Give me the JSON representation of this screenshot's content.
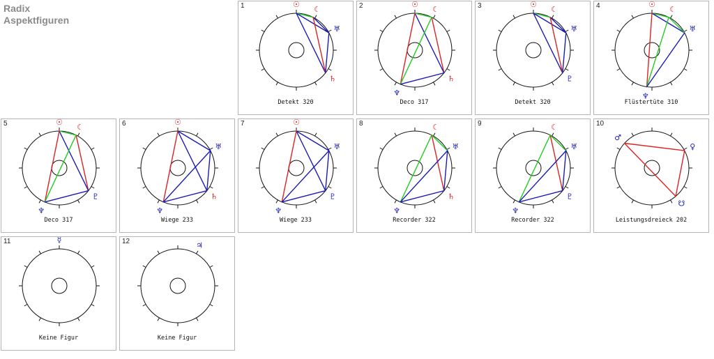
{
  "title": {
    "line1": "Radix",
    "line2": "Aspektfiguren"
  },
  "colors": {
    "red": "#dd2222",
    "blue": "#1a1ab5",
    "green": "#22cc22"
  },
  "symbol_colors": {
    "sun": "#dd2222",
    "moon": "#dd2222",
    "saturn": "#dd2222",
    "mars": "#1a1ab5",
    "venus": "#1a1ab5",
    "mercury": "#1a1ab5",
    "jupiter": "#1a1ab5",
    "uranus": "#1a1ab5",
    "neptune": "#1a1ab5",
    "pluto": "#1a1ab5",
    "node": "#1a1ab5"
  },
  "figures": [
    {
      "num": "1",
      "label": "Detekt 320",
      "planets": [
        {
          "id": "sun",
          "lon": 90
        },
        {
          "id": "moon",
          "lon": 63
        },
        {
          "id": "uranus",
          "lon": 28
        },
        {
          "id": "saturn",
          "lon": -38
        }
      ],
      "aspects": [
        {
          "a": "sun",
          "b": "moon",
          "c": "green"
        },
        {
          "a": "sun",
          "b": "uranus",
          "c": "blue"
        },
        {
          "a": "sun",
          "b": "saturn",
          "c": "blue"
        },
        {
          "a": "moon",
          "b": "uranus",
          "c": "blue"
        },
        {
          "a": "moon",
          "b": "saturn",
          "c": "red"
        },
        {
          "a": "uranus",
          "b": "saturn",
          "c": "blue"
        }
      ]
    },
    {
      "num": "2",
      "label": "Deco 317",
      "planets": [
        {
          "id": "sun",
          "lon": 90
        },
        {
          "id": "moon",
          "lon": 63
        },
        {
          "id": "saturn",
          "lon": -38
        },
        {
          "id": "neptune",
          "lon": -113
        }
      ],
      "aspects": [
        {
          "a": "sun",
          "b": "moon",
          "c": "green"
        },
        {
          "a": "moon",
          "b": "saturn",
          "c": "red"
        },
        {
          "a": "sun",
          "b": "saturn",
          "c": "blue"
        },
        {
          "a": "sun",
          "b": "neptune",
          "c": "red"
        },
        {
          "a": "moon",
          "b": "neptune",
          "c": "green"
        },
        {
          "a": "saturn",
          "b": "neptune",
          "c": "blue"
        }
      ]
    },
    {
      "num": "3",
      "label": "Detekt 320",
      "planets": [
        {
          "id": "sun",
          "lon": 90
        },
        {
          "id": "moon",
          "lon": 63
        },
        {
          "id": "uranus",
          "lon": 28
        },
        {
          "id": "pluto",
          "lon": -38
        }
      ],
      "aspects": [
        {
          "a": "sun",
          "b": "moon",
          "c": "green"
        },
        {
          "a": "sun",
          "b": "uranus",
          "c": "blue"
        },
        {
          "a": "sun",
          "b": "pluto",
          "c": "blue"
        },
        {
          "a": "moon",
          "b": "uranus",
          "c": "blue"
        },
        {
          "a": "moon",
          "b": "pluto",
          "c": "red"
        },
        {
          "a": "uranus",
          "b": "pluto",
          "c": "blue"
        }
      ]
    },
    {
      "num": "4",
      "label": "Flüstertüte 310",
      "planets": [
        {
          "id": "sun",
          "lon": 90
        },
        {
          "id": "moon",
          "lon": 63
        },
        {
          "id": "uranus",
          "lon": 28
        },
        {
          "id": "neptune",
          "lon": -98
        }
      ],
      "aspects": [
        {
          "a": "sun",
          "b": "moon",
          "c": "green"
        },
        {
          "a": "sun",
          "b": "uranus",
          "c": "blue"
        },
        {
          "a": "moon",
          "b": "uranus",
          "c": "green"
        },
        {
          "a": "sun",
          "b": "neptune",
          "c": "red"
        },
        {
          "a": "moon",
          "b": "neptune",
          "c": "green"
        },
        {
          "a": "uranus",
          "b": "neptune",
          "c": "blue"
        }
      ]
    },
    {
      "num": "5",
      "label": "Deco 317",
      "planets": [
        {
          "id": "sun",
          "lon": 90
        },
        {
          "id": "moon",
          "lon": 63
        },
        {
          "id": "pluto",
          "lon": -38
        },
        {
          "id": "neptune",
          "lon": -113
        }
      ],
      "aspects": [
        {
          "a": "sun",
          "b": "moon",
          "c": "green"
        },
        {
          "a": "moon",
          "b": "pluto",
          "c": "red"
        },
        {
          "a": "sun",
          "b": "pluto",
          "c": "blue"
        },
        {
          "a": "sun",
          "b": "neptune",
          "c": "red"
        },
        {
          "a": "moon",
          "b": "neptune",
          "c": "green"
        },
        {
          "a": "pluto",
          "b": "neptune",
          "c": "blue"
        }
      ]
    },
    {
      "num": "6",
      "label": "Wiege 233",
      "planets": [
        {
          "id": "sun",
          "lon": 90
        },
        {
          "id": "uranus",
          "lon": 28
        },
        {
          "id": "saturn",
          "lon": -38
        },
        {
          "id": "neptune",
          "lon": -113
        }
      ],
      "aspects": [
        {
          "a": "sun",
          "b": "uranus",
          "c": "blue"
        },
        {
          "a": "sun",
          "b": "saturn",
          "c": "blue"
        },
        {
          "a": "uranus",
          "b": "saturn",
          "c": "blue"
        },
        {
          "a": "sun",
          "b": "neptune",
          "c": "red"
        },
        {
          "a": "uranus",
          "b": "neptune",
          "c": "blue"
        },
        {
          "a": "saturn",
          "b": "neptune",
          "c": "blue"
        }
      ]
    },
    {
      "num": "7",
      "label": "Wiege 233",
      "planets": [
        {
          "id": "sun",
          "lon": 90
        },
        {
          "id": "uranus",
          "lon": 28
        },
        {
          "id": "pluto",
          "lon": -38
        },
        {
          "id": "neptune",
          "lon": -113
        }
      ],
      "aspects": [
        {
          "a": "sun",
          "b": "uranus",
          "c": "blue"
        },
        {
          "a": "sun",
          "b": "pluto",
          "c": "blue"
        },
        {
          "a": "uranus",
          "b": "pluto",
          "c": "blue"
        },
        {
          "a": "sun",
          "b": "neptune",
          "c": "red"
        },
        {
          "a": "uranus",
          "b": "neptune",
          "c": "blue"
        },
        {
          "a": "pluto",
          "b": "neptune",
          "c": "blue"
        }
      ]
    },
    {
      "num": "8",
      "label": "Recorder 322",
      "planets": [
        {
          "id": "moon",
          "lon": 63
        },
        {
          "id": "uranus",
          "lon": 28
        },
        {
          "id": "saturn",
          "lon": -38
        },
        {
          "id": "neptune",
          "lon": -113
        }
      ],
      "aspects": [
        {
          "a": "moon",
          "b": "uranus",
          "c": "green"
        },
        {
          "a": "moon",
          "b": "saturn",
          "c": "red"
        },
        {
          "a": "uranus",
          "b": "saturn",
          "c": "blue"
        },
        {
          "a": "moon",
          "b": "neptune",
          "c": "green"
        },
        {
          "a": "uranus",
          "b": "neptune",
          "c": "blue"
        },
        {
          "a": "saturn",
          "b": "neptune",
          "c": "blue"
        }
      ]
    },
    {
      "num": "9",
      "label": "Recorder 322",
      "planets": [
        {
          "id": "moon",
          "lon": 63
        },
        {
          "id": "uranus",
          "lon": 28
        },
        {
          "id": "pluto",
          "lon": -38
        },
        {
          "id": "neptune",
          "lon": -113
        }
      ],
      "aspects": [
        {
          "a": "moon",
          "b": "uranus",
          "c": "green"
        },
        {
          "a": "moon",
          "b": "pluto",
          "c": "red"
        },
        {
          "a": "uranus",
          "b": "pluto",
          "c": "blue"
        },
        {
          "a": "moon",
          "b": "neptune",
          "c": "green"
        },
        {
          "a": "uranus",
          "b": "neptune",
          "c": "blue"
        },
        {
          "a": "pluto",
          "b": "neptune",
          "c": "blue"
        }
      ]
    },
    {
      "num": "10",
      "label": "Leistungsdreieck 202",
      "planets": [
        {
          "id": "mars",
          "lon": 138
        },
        {
          "id": "venus",
          "lon": 28
        },
        {
          "id": "node",
          "lon": -50
        }
      ],
      "aspects": [
        {
          "a": "mars",
          "b": "venus",
          "c": "red"
        },
        {
          "a": "venus",
          "b": "node",
          "c": "red"
        },
        {
          "a": "mars",
          "b": "node",
          "c": "red"
        }
      ]
    },
    {
      "num": "11",
      "label": "Keine Figur",
      "planets": [
        {
          "id": "mercury",
          "lon": 90
        }
      ],
      "aspects": []
    },
    {
      "num": "12",
      "label": "Keine Figur",
      "planets": [
        {
          "id": "jupiter",
          "lon": 62
        }
      ],
      "aspects": []
    }
  ]
}
